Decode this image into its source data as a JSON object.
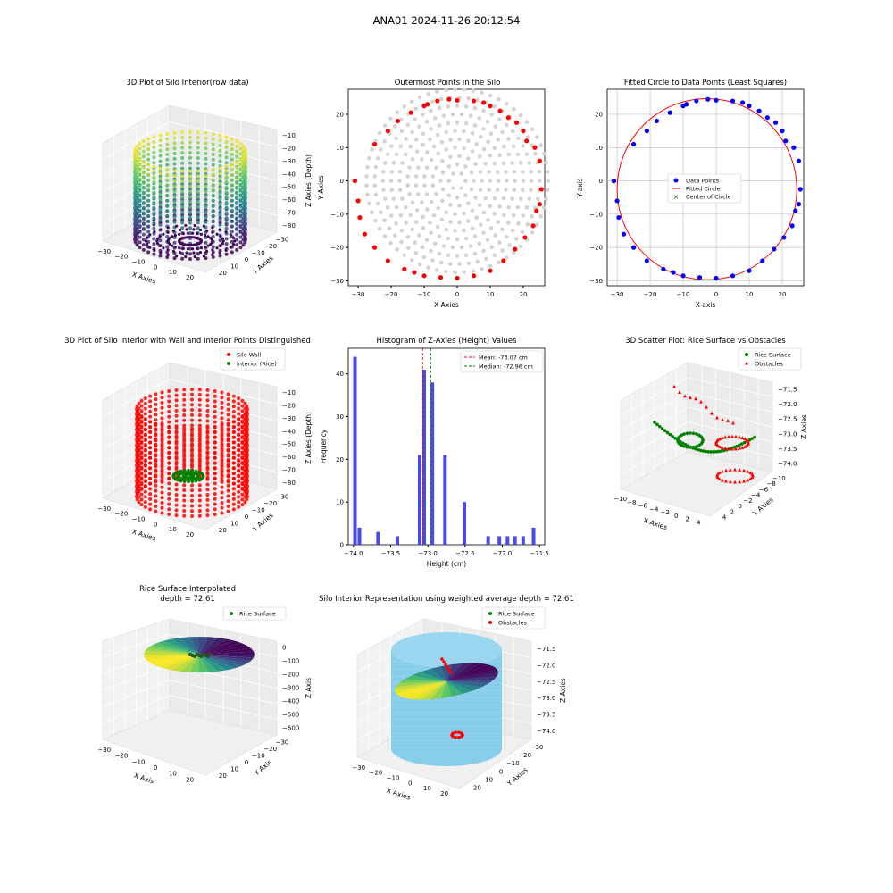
{
  "figure_title": "ANA01 2024-11-26 20:12:54",
  "colors": {
    "wall": "#ff0000",
    "rice": "#008000",
    "hist": "#4a4ae8",
    "silo": "#87ceeb",
    "grey": "#d3d3d3",
    "blue": "#0000ff"
  },
  "chart_data": [
    {
      "id": "p1",
      "type": "scatter3d",
      "title": "3D Plot of Silo Interior(row data)",
      "xlabel": "X Axies",
      "ylabel": "Y Axies",
      "zlabel": "Z Axies (Depth)",
      "xticks": [
        "−30",
        "−20",
        "−10",
        "0",
        "10",
        "20"
      ],
      "yticks": [
        "−30",
        "−20",
        "−10",
        "0",
        "10",
        "20"
      ],
      "zticks": [
        "−10",
        "−20",
        "−30",
        "−40",
        "−50",
        "−60",
        "−70",
        "−80"
      ],
      "colormap": "viridis",
      "zlim": [
        -90,
        0
      ],
      "radius": 27,
      "center": [
        -3,
        -2
      ]
    },
    {
      "id": "p2",
      "type": "scatter",
      "title": "Outermost Points in the Silo",
      "xlabel": "X Axies",
      "ylabel": "Y Axies",
      "xlim": [
        -33,
        26.5
      ],
      "ylim": [
        -31.5,
        27.5
      ],
      "xticks": [
        -30,
        -20,
        -10,
        0,
        10,
        20
      ],
      "yticks": [
        -30,
        -20,
        -10,
        0,
        10,
        20
      ],
      "tick_labels_x": [
        "−30",
        "−20",
        "−10",
        "0",
        "10",
        "20"
      ],
      "tick_labels_y": [
        "−30",
        "−20",
        "−10",
        "0",
        "10",
        "20"
      ],
      "center": [
        0,
        0
      ],
      "ring_step": 2.5,
      "rings": 11,
      "outer_points": [
        [
          -31,
          0
        ],
        [
          -30,
          -6
        ],
        [
          -29.5,
          -11
        ],
        [
          -28,
          -16
        ],
        [
          -25,
          -20
        ],
        [
          -21,
          -24
        ],
        [
          -16,
          -26.5
        ],
        [
          -13,
          -27.5
        ],
        [
          -10,
          -28.5
        ],
        [
          -5,
          -29
        ],
        [
          0,
          -29.2
        ],
        [
          5,
          -28.5
        ],
        [
          10,
          -27
        ],
        [
          14,
          -24
        ],
        [
          17.5,
          -20.5
        ],
        [
          20.5,
          -17
        ],
        [
          23,
          -13.5
        ],
        [
          24,
          -9
        ],
        [
          25,
          -7
        ],
        [
          25.5,
          -2.5
        ],
        [
          25,
          6
        ],
        [
          23.5,
          10
        ],
        [
          21,
          12
        ],
        [
          20,
          15
        ],
        [
          18,
          17.5
        ],
        [
          15.5,
          19
        ],
        [
          13,
          21
        ],
        [
          10,
          22.5
        ],
        [
          8,
          23.5
        ],
        [
          5,
          24
        ],
        [
          0,
          24.2
        ],
        [
          -2.5,
          24.5
        ],
        [
          -6,
          24
        ],
        [
          -9,
          23
        ],
        [
          -10,
          22.5
        ],
        [
          -14,
          20.5
        ],
        [
          -18,
          18
        ],
        [
          -21,
          15
        ],
        [
          -25,
          11
        ],
        [
          -31,
          0
        ]
      ]
    },
    {
      "id": "p3",
      "type": "scatter",
      "title": "Fitted Circle to Data Points (Least Squares)",
      "xlabel": "X-axis",
      "ylabel": "Y-axis",
      "xlim": [
        -33,
        26.5
      ],
      "ylim": [
        -31.5,
        27.5
      ],
      "xticks": [
        -30,
        -20,
        -10,
        0,
        10,
        20
      ],
      "yticks": [
        -30,
        -20,
        -10,
        0,
        10,
        20
      ],
      "tick_labels_x": [
        "−30",
        "−20",
        "−10",
        "0",
        "10",
        "20"
      ],
      "tick_labels_y": [
        "−30",
        "−20",
        "−10",
        "0",
        "10",
        "20"
      ],
      "circle": {
        "cx": -2.8,
        "cy": -2.5,
        "r": 27.2
      },
      "legend": [
        "Data Points",
        "Fitted Circle",
        "Center of Circle"
      ],
      "grid": true
    },
    {
      "id": "p4",
      "type": "scatter3d",
      "title": "3D Plot of Silo Interior with Wall and Interior Points Distinguished",
      "xlabel": "X Axies",
      "ylabel": "Y Axies",
      "zlabel": "Z Axies (Depth)",
      "xticks": [
        "−30",
        "−20",
        "−10",
        "0",
        "10",
        "20"
      ],
      "yticks": [
        "−30",
        "−20",
        "−10",
        "0",
        "10",
        "20"
      ],
      "zticks": [
        "−10",
        "−20",
        "−30",
        "−40",
        "−50",
        "−60",
        "−70",
        "−80"
      ],
      "legend": [
        "Silo Wall",
        "Interior (Rice)"
      ]
    },
    {
      "id": "p5",
      "type": "bar",
      "title": "Histogram of Z-Axies (Height) Values",
      "xlabel": "Height (cm)",
      "ylabel": "Frequency",
      "xlim": [
        -74.07,
        -71.43
      ],
      "ylim": [
        0,
        46
      ],
      "xticks": [
        -74.0,
        -73.5,
        -73.0,
        -72.5,
        -72.0,
        -71.5
      ],
      "tick_labels_x": [
        "−74.0",
        "−73.5",
        "−73.0",
        "−72.5",
        "−72.0",
        "−71.5"
      ],
      "yticks": [
        0,
        10,
        20,
        30,
        40
      ],
      "bins": [
        {
          "x": -73.98,
          "count": 44
        },
        {
          "x": -73.92,
          "count": 4
        },
        {
          "x": -73.67,
          "count": 3
        },
        {
          "x": -73.41,
          "count": 2
        },
        {
          "x": -73.11,
          "count": 21
        },
        {
          "x": -73.05,
          "count": 41
        },
        {
          "x": -72.94,
          "count": 38
        },
        {
          "x": -72.77,
          "count": 21
        },
        {
          "x": -72.51,
          "count": 10
        },
        {
          "x": -72.19,
          "count": 2
        },
        {
          "x": -72.04,
          "count": 2
        },
        {
          "x": -71.93,
          "count": 2
        },
        {
          "x": -71.83,
          "count": 2
        },
        {
          "x": -71.72,
          "count": 2
        },
        {
          "x": -71.58,
          "count": 4
        }
      ],
      "mean": -73.07,
      "median": -72.96,
      "mean_label": "Mean: -73.07 cm",
      "median_label": "Median: -72.96 cm"
    },
    {
      "id": "p6",
      "type": "scatter3d",
      "title": "3D Scatter Plot: Rice Surface vs Obstacles",
      "xlabel": "X Axies",
      "ylabel": "Y Axies",
      "zlabel": "Z Axies",
      "xticks": [
        "−10",
        "−8",
        "−6",
        "−4",
        "−2",
        "0",
        "2",
        "4"
      ],
      "yticks": [
        "−10",
        "−8",
        "−6",
        "−4",
        "−2",
        "0",
        "2",
        "4"
      ],
      "zticks": [
        "−71.5",
        "−72.0",
        "−72.5",
        "−73.0",
        "−73.5",
        "−74.0"
      ],
      "legend": [
        "Rice Surface",
        "Obstacles"
      ]
    },
    {
      "id": "p7",
      "type": "surface3d",
      "title_line1": "Rice Surface Interpolated",
      "title_line2": "depth = 72.61",
      "xlabel": "X Axis",
      "ylabel": "Y Axis",
      "zlabel": "Z Axis",
      "xticks": [
        "−30",
        "−20",
        "−10",
        "0",
        "10",
        "20"
      ],
      "yticks": [
        "−30",
        "−20",
        "−10",
        "0",
        "10",
        "20"
      ],
      "zticks": [
        "0",
        "−100",
        "−200",
        "−300",
        "−400",
        "−500",
        "−600"
      ],
      "legend": [
        "Rice Surface"
      ]
    },
    {
      "id": "p8",
      "type": "surface3d",
      "title": "Silo Interior Representation using weighted average depth = 72.61",
      "xlabel": "X Axies",
      "ylabel": "Y Axies",
      "zlabel": "Z Axies",
      "xticks": [
        "−30",
        "−20",
        "−10",
        "0",
        "10",
        "20"
      ],
      "yticks": [
        "−30",
        "−20",
        "−10",
        "0",
        "10",
        "20"
      ],
      "zticks": [
        "−71.5",
        "−72.0",
        "−72.5",
        "−73.0",
        "−73.5",
        "−74.0"
      ],
      "legend": [
        "Rice Surface",
        "Obstacles"
      ]
    }
  ]
}
